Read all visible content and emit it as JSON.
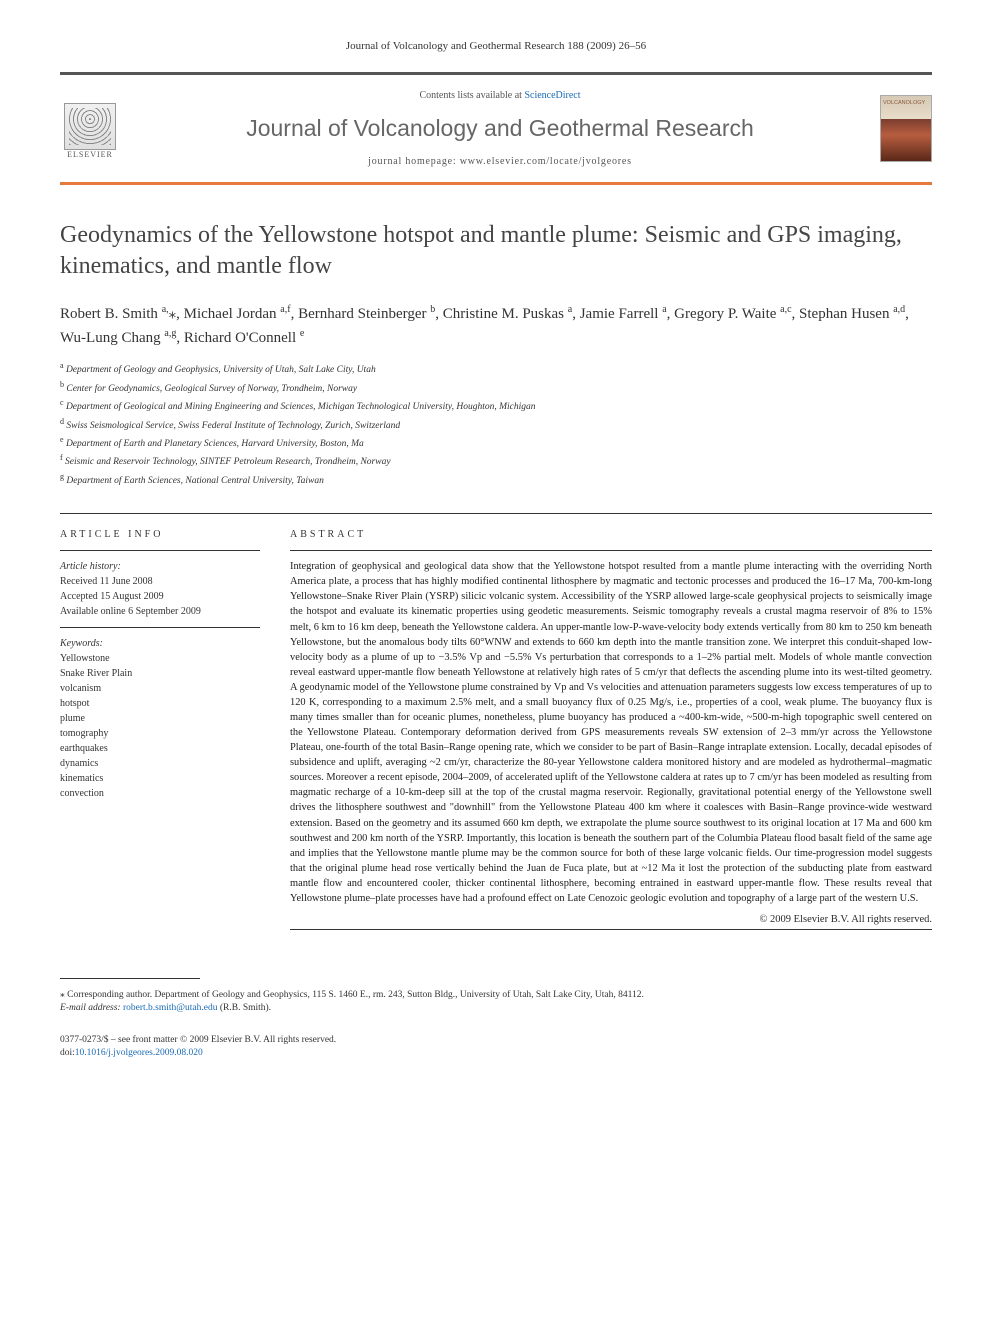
{
  "running_head": "Journal of Volcanology and Geothermal Research 188 (2009) 26–56",
  "masthead": {
    "contents_prefix": "Contents lists available at ",
    "contents_link": "ScienceDirect",
    "journal_name": "Journal of Volcanology and Geothermal Research",
    "homepage_prefix": "journal homepage: ",
    "homepage_url": "www.elsevier.com/locate/jvolgeores",
    "publisher_label": "ELSEVIER"
  },
  "title": "Geodynamics of the Yellowstone hotspot and mantle plume: Seismic and GPS imaging, kinematics, and mantle flow",
  "authors": [
    {
      "name": "Robert B. Smith",
      "marks": "a,",
      "star": "⁎"
    },
    {
      "name": "Michael Jordan",
      "marks": "a,f"
    },
    {
      "name": "Bernhard Steinberger",
      "marks": "b"
    },
    {
      "name": "Christine M. Puskas",
      "marks": "a"
    },
    {
      "name": "Jamie Farrell",
      "marks": "a"
    },
    {
      "name": "Gregory P. Waite",
      "marks": "a,c"
    },
    {
      "name": "Stephan Husen",
      "marks": "a,d"
    },
    {
      "name": "Wu-Lung Chang",
      "marks": "a,g"
    },
    {
      "name": "Richard O'Connell",
      "marks": "e"
    }
  ],
  "affiliations": [
    {
      "sup": "a",
      "text": "Department of Geology and Geophysics, University of Utah, Salt Lake City, Utah"
    },
    {
      "sup": "b",
      "text": "Center for Geodynamics, Geological Survey of Norway, Trondheim, Norway"
    },
    {
      "sup": "c",
      "text": "Department of Geological and Mining Engineering and Sciences, Michigan Technological University, Houghton, Michigan"
    },
    {
      "sup": "d",
      "text": "Swiss Seismological Service, Swiss Federal Institute of Technology, Zurich, Switzerland"
    },
    {
      "sup": "e",
      "text": "Department of Earth and Planetary Sciences, Harvard University, Boston, Ma"
    },
    {
      "sup": "f",
      "text": "Seismic and Reservoir Technology, SINTEF Petroleum Research, Trondheim, Norway"
    },
    {
      "sup": "g",
      "text": "Department of Earth Sciences, National Central University, Taiwan"
    }
  ],
  "article_info": {
    "heading": "ARTICLE INFO",
    "history_label": "Article history:",
    "received": "Received 11 June 2008",
    "accepted": "Accepted 15 August 2009",
    "online": "Available online 6 September 2009",
    "keywords_label": "Keywords:",
    "keywords": [
      "Yellowstone",
      "Snake River Plain",
      "volcanism",
      "hotspot",
      "plume",
      "tomography",
      "earthquakes",
      "dynamics",
      "kinematics",
      "convection"
    ]
  },
  "abstract": {
    "heading": "ABSTRACT",
    "text": "Integration of geophysical and geological data show that the Yellowstone hotspot resulted from a mantle plume interacting with the overriding North America plate, a process that has highly modified continental lithosphere by magmatic and tectonic processes and produced the 16–17 Ma, 700-km-long Yellowstone–Snake River Plain (YSRP) silicic volcanic system. Accessibility of the YSRP allowed large-scale geophysical projects to seismically image the hotspot and evaluate its kinematic properties using geodetic measurements. Seismic tomography reveals a crustal magma reservoir of 8% to 15% melt, 6 km to 16 km deep, beneath the Yellowstone caldera. An upper-mantle low-P-wave-velocity body extends vertically from 80 km to 250 km beneath Yellowstone, but the anomalous body tilts 60°WNW and extends to 660 km depth into the mantle transition zone. We interpret this conduit-shaped low-velocity body as a plume of up to −3.5% Vp and −5.5% Vs perturbation that corresponds to a 1–2% partial melt. Models of whole mantle convection reveal eastward upper-mantle flow beneath Yellowstone at relatively high rates of 5 cm/yr that deflects the ascending plume into its west-tilted geometry. A geodynamic model of the Yellowstone plume constrained by Vp and Vs velocities and attenuation parameters suggests low excess temperatures of up to 120 K, corresponding to a maximum 2.5% melt, and a small buoyancy flux of 0.25 Mg/s, i.e., properties of a cool, weak plume. The buoyancy flux is many times smaller than for oceanic plumes, nonetheless, plume buoyancy has produced a ~400-km-wide, ~500-m-high topographic swell centered on the Yellowstone Plateau. Contemporary deformation derived from GPS measurements reveals SW extension of 2–3 mm/yr across the Yellowstone Plateau, one-fourth of the total Basin–Range opening rate, which we consider to be part of Basin–Range intraplate extension. Locally, decadal episodes of subsidence and uplift, averaging ~2 cm/yr, characterize the 80-year Yellowstone caldera monitored history and are modeled as hydrothermal–magmatic sources. Moreover a recent episode, 2004–2009, of accelerated uplift of the Yellowstone caldera at rates up to 7 cm/yr has been modeled as resulting from magmatic recharge of a 10-km-deep sill at the top of the crustal magma reservoir. Regionally, gravitational potential energy of the Yellowstone swell drives the lithosphere southwest and \"downhill\" from the Yellowstone Plateau 400 km where it coalesces with Basin–Range province-wide westward extension. Based on the geometry and its assumed 660 km depth, we extrapolate the plume source southwest to its original location at 17 Ma and 600 km southwest and 200 km north of the YSRP. Importantly, this location is beneath the southern part of the Columbia Plateau flood basalt field of the same age and implies that the Yellowstone mantle plume may be the common source for both of these large volcanic fields. Our time-progression model suggests that the original plume head rose vertically behind the Juan de Fuca plate, but at ~12 Ma it lost the protection of the subducting plate from eastward mantle flow and encountered cooler, thicker continental lithosphere, becoming entrained in eastward upper-mantle flow. These results reveal that Yellowstone plume–plate processes have had a profound effect on Late Cenozoic geologic evolution and topography of a large part of the western U.S.",
    "copyright": "© 2009 Elsevier B.V. All rights reserved."
  },
  "corresponding": {
    "star": "⁎",
    "text": "Corresponding author. Department of Geology and Geophysics, 115 S. 1460 E., rm. 243, Sutton Bldg., University of Utah, Salt Lake City, Utah, 84112.",
    "email_label": "E-mail address: ",
    "email": "robert.b.smith@utah.edu",
    "email_name": " (R.B. Smith)."
  },
  "footer": {
    "issn_line": "0377-0273/$ – see front matter © 2009 Elsevier B.V. All rights reserved.",
    "doi_prefix": "doi:",
    "doi": "10.1016/j.jvolgeores.2009.08.020"
  }
}
